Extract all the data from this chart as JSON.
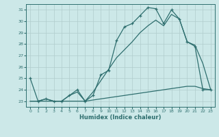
{
  "title": "",
  "xlabel": "Humidex (Indice chaleur)",
  "xlim": [
    -0.5,
    23.5
  ],
  "ylim": [
    22.5,
    31.5
  ],
  "yticks": [
    23,
    24,
    25,
    26,
    27,
    28,
    29,
    30,
    31
  ],
  "xticks": [
    0,
    1,
    2,
    3,
    4,
    5,
    6,
    7,
    8,
    9,
    10,
    11,
    12,
    13,
    14,
    15,
    16,
    17,
    18,
    19,
    20,
    21,
    22,
    23
  ],
  "bg_color": "#cce8e8",
  "line_color": "#2e6e6e",
  "line1_x": [
    0,
    1,
    2,
    3,
    4,
    5,
    6,
    7,
    8,
    9,
    10,
    11,
    12,
    13,
    14,
    15,
    16,
    17,
    18,
    19,
    20,
    21,
    22,
    23
  ],
  "line1_y": [
    25.0,
    23.0,
    23.2,
    23.0,
    23.0,
    23.5,
    24.0,
    23.0,
    23.5,
    25.3,
    25.7,
    28.3,
    29.5,
    29.8,
    30.5,
    31.2,
    31.1,
    29.8,
    31.0,
    30.2,
    28.2,
    27.8,
    24.0,
    24.0
  ],
  "line2_x": [
    0,
    1,
    2,
    3,
    4,
    5,
    6,
    7,
    8,
    9,
    10,
    11,
    12,
    13,
    14,
    15,
    16,
    17,
    18,
    19,
    20,
    21,
    22,
    23
  ],
  "line2_y": [
    23.0,
    23.0,
    23.0,
    23.0,
    23.0,
    23.0,
    23.0,
    23.0,
    23.1,
    23.2,
    23.3,
    23.4,
    23.5,
    23.6,
    23.7,
    23.8,
    23.9,
    24.0,
    24.1,
    24.2,
    24.3,
    24.3,
    24.1,
    24.0
  ],
  "line3_x": [
    0,
    1,
    2,
    3,
    4,
    5,
    6,
    7,
    8,
    9,
    10,
    11,
    12,
    13,
    14,
    15,
    16,
    17,
    18,
    19,
    20,
    21,
    22,
    23
  ],
  "line3_y": [
    23.0,
    23.0,
    23.2,
    23.0,
    23.0,
    23.5,
    23.8,
    23.0,
    23.8,
    24.8,
    25.8,
    26.8,
    27.5,
    28.2,
    29.0,
    29.6,
    30.1,
    29.6,
    30.6,
    30.2,
    28.2,
    27.9,
    26.3,
    24.0
  ]
}
